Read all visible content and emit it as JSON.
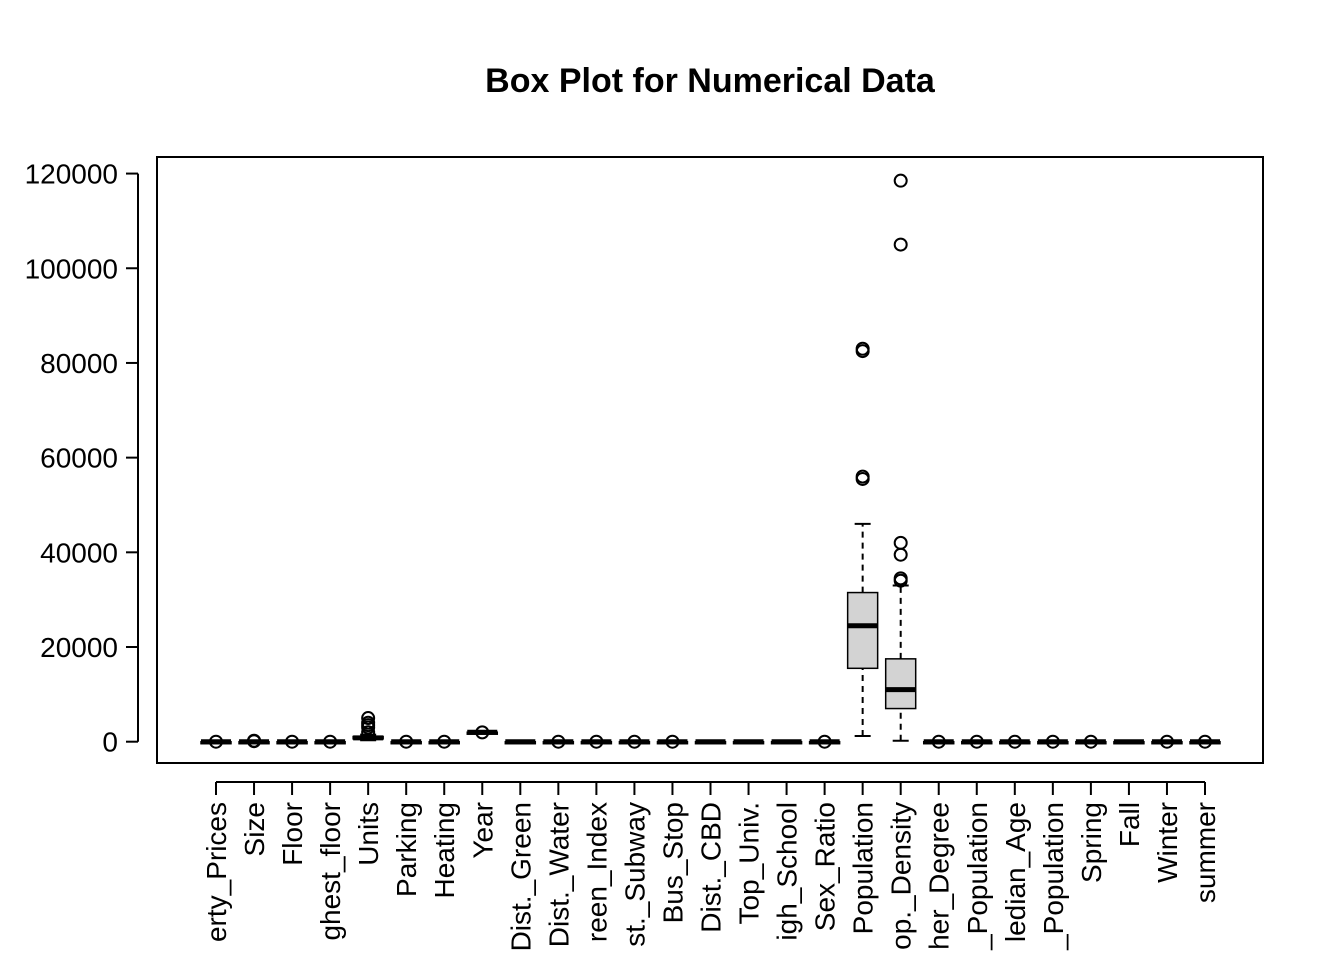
{
  "chart_data": {
    "type": "box",
    "title": "Box Plot for Numerical Data",
    "xlabel": "",
    "ylabel": "",
    "ylim": [
      -4500,
      123500
    ],
    "yticks": [
      0,
      20000,
      40000,
      60000,
      80000,
      100000,
      120000
    ],
    "ytick_labels": [
      "0",
      "20000",
      "40000",
      "60000",
      "80000",
      "100000",
      "120000"
    ],
    "categories": [
      "Property_Prices",
      "Size",
      "Floor",
      "Highest_floor",
      "Units",
      "Parking",
      "Heating",
      "Year",
      "Dist._Green",
      "Dist._Water",
      "Green_Index",
      "Dist._Subway",
      "Bus_Stop",
      "Dist._CBD",
      "Top_Univ.",
      "High_School",
      "Sex_Ratio",
      "Population",
      "Pop._Density",
      "Higher_Degree",
      "Population",
      "Median_Age",
      "Population",
      "Spring",
      "Fall",
      "Winter",
      "summer"
    ],
    "category_labels_visible": [
      "erty_Prices",
      "Size",
      "Floor",
      "ghest_floor",
      "Units",
      "Parking",
      "Heating",
      "Year",
      "Dist._Green",
      "Dist._Water",
      "reen_Index",
      "st._Subway",
      "Bus_Stop",
      "Dist._CBD",
      "Top_Univ.",
      "igh_School",
      "Sex_Ratio",
      "Population",
      "op._Density",
      "her_Degree",
      "_Population",
      "ledian_Age",
      "_Population",
      "Spring",
      "Fall",
      "Winter",
      "summer"
    ],
    "boxes": [
      {
        "min": 0,
        "q1": 0,
        "median": 0,
        "q3": 0,
        "max": 0,
        "outliers": [
          0
        ]
      },
      {
        "min": 0,
        "q1": 0,
        "median": 0,
        "q3": 0,
        "max": 0,
        "outliers": [
          100,
          150,
          200
        ]
      },
      {
        "min": 0,
        "q1": 0,
        "median": 0,
        "q3": 0,
        "max": 0,
        "outliers": [
          0
        ]
      },
      {
        "min": 0,
        "q1": 0,
        "median": 0,
        "q3": 0,
        "max": 0,
        "outliers": [
          0
        ]
      },
      {
        "min": 300,
        "q1": 600,
        "median": 800,
        "q3": 1100,
        "max": 1500,
        "outliers": [
          2000,
          3000,
          3500,
          4000,
          5000
        ]
      },
      {
        "min": 0,
        "q1": 0,
        "median": 0,
        "q3": 0,
        "max": 0,
        "outliers": [
          0
        ]
      },
      {
        "min": 0,
        "q1": 0,
        "median": 0,
        "q3": 0,
        "max": 0,
        "outliers": [
          0
        ]
      },
      {
        "min": 1980,
        "q1": 1990,
        "median": 2000,
        "q3": 2008,
        "max": 2018,
        "outliers": [
          1970
        ]
      },
      {
        "min": 0,
        "q1": 0,
        "median": 0,
        "q3": 0,
        "max": 0,
        "outliers": []
      },
      {
        "min": 0,
        "q1": 0,
        "median": 0,
        "q3": 0,
        "max": 0,
        "outliers": [
          0
        ]
      },
      {
        "min": 0,
        "q1": 0,
        "median": 0,
        "q3": 0,
        "max": 0,
        "outliers": [
          0
        ]
      },
      {
        "min": 0,
        "q1": 0,
        "median": 0,
        "q3": 0,
        "max": 0,
        "outliers": [
          0
        ]
      },
      {
        "min": 0,
        "q1": 0,
        "median": 0,
        "q3": 0,
        "max": 0,
        "outliers": [
          0
        ]
      },
      {
        "min": 0,
        "q1": 0,
        "median": 0,
        "q3": 0,
        "max": 0,
        "outliers": []
      },
      {
        "min": 0,
        "q1": 0,
        "median": 0,
        "q3": 0,
        "max": 0,
        "outliers": []
      },
      {
        "min": 0,
        "q1": 0,
        "median": 0,
        "q3": 0,
        "max": 0,
        "outliers": []
      },
      {
        "min": 0,
        "q1": 0,
        "median": 0,
        "q3": 0,
        "max": 0,
        "outliers": [
          0
        ]
      },
      {
        "min": 1200,
        "q1": 15500,
        "median": 24500,
        "q3": 31500,
        "max": 46000,
        "outliers": [
          55500,
          56000,
          82500,
          83000
        ]
      },
      {
        "min": 200,
        "q1": 7000,
        "median": 11000,
        "q3": 17500,
        "max": 33000,
        "outliers": [
          34000,
          34500,
          39500,
          42000,
          105000,
          118500
        ]
      },
      {
        "min": 0,
        "q1": 0,
        "median": 0,
        "q3": 0,
        "max": 0,
        "outliers": [
          0
        ]
      },
      {
        "min": 0,
        "q1": 0,
        "median": 0,
        "q3": 0,
        "max": 0,
        "outliers": [
          0
        ]
      },
      {
        "min": 0,
        "q1": 0,
        "median": 0,
        "q3": 0,
        "max": 0,
        "outliers": [
          0
        ]
      },
      {
        "min": 0,
        "q1": 0,
        "median": 0,
        "q3": 0,
        "max": 0,
        "outliers": [
          0
        ]
      },
      {
        "min": 0,
        "q1": 0,
        "median": 0,
        "q3": 0,
        "max": 0,
        "outliers": [
          0
        ]
      },
      {
        "min": 0,
        "q1": 0,
        "median": 0,
        "q3": 0,
        "max": 0,
        "outliers": []
      },
      {
        "min": 0,
        "q1": 0,
        "median": 0,
        "q3": 0,
        "max": 0,
        "outliers": [
          0
        ]
      },
      {
        "min": 0,
        "q1": 0,
        "median": 0,
        "q3": 0,
        "max": 0,
        "outliers": [
          0
        ]
      }
    ],
    "colors": {
      "box_fill": "#d3d3d3",
      "stroke": "#000000"
    },
    "grid": false,
    "legend": "none"
  }
}
